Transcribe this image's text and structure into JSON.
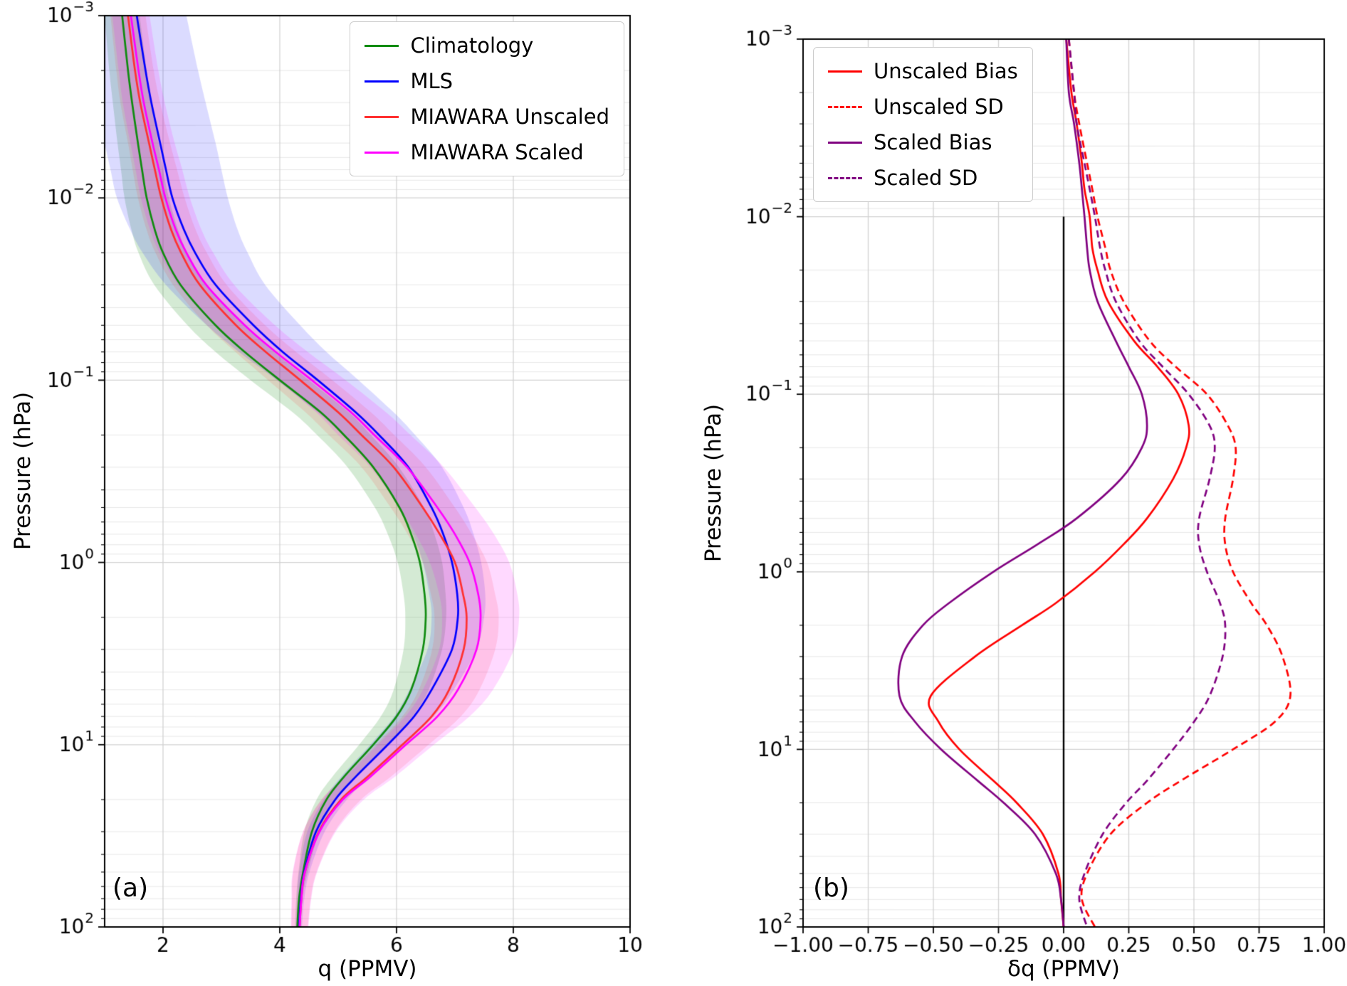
{
  "figure": {
    "background": "#ffffff",
    "panel_a_label": "(a)",
    "panel_b_label": "(b)"
  },
  "chart_data": [
    {
      "type": "line",
      "panel": "a",
      "title": "",
      "xlabel": "q (PPMV)",
      "ylabel": "Pressure (hPa)",
      "xlim": [
        1,
        10
      ],
      "x_ticks": [
        2,
        4,
        6,
        8,
        10
      ],
      "x_tick_labels": [
        "2",
        "4",
        "6",
        "8",
        "10"
      ],
      "yscale": "log",
      "y_inverted": true,
      "ylim": [
        0.001,
        100
      ],
      "y_tick_values": [
        0.001,
        0.01,
        0.1,
        1,
        10,
        100
      ],
      "y_tick_exponents": [
        "−3",
        "−2",
        "−1",
        "0",
        "1",
        "2"
      ],
      "grid": true,
      "legend_position": "top-right",
      "pressure_hPa": [
        0.001,
        0.002,
        0.003,
        0.005,
        0.007,
        0.01,
        0.015,
        0.02,
        0.03,
        0.05,
        0.07,
        0.1,
        0.15,
        0.2,
        0.3,
        0.5,
        0.7,
        1,
        1.5,
        2,
        3,
        5,
        7,
        10,
        15,
        20,
        30,
        50,
        70,
        100
      ],
      "series": [
        {
          "name": "Climatology",
          "color": "#0f8b0f",
          "dash": false,
          "band_alpha": 0.18,
          "values": [
            1.3,
            1.4,
            1.47,
            1.57,
            1.64,
            1.72,
            1.86,
            2.0,
            2.3,
            2.9,
            3.4,
            4.0,
            4.7,
            5.1,
            5.6,
            6.05,
            6.25,
            6.4,
            6.48,
            6.5,
            6.45,
            6.25,
            6.0,
            5.6,
            5.1,
            4.8,
            4.55,
            4.4,
            4.33,
            4.3
          ],
          "band_halfwidth": [
            0.3,
            0.32,
            0.33,
            0.35,
            0.36,
            0.38,
            0.4,
            0.42,
            0.45,
            0.48,
            0.5,
            0.5,
            0.48,
            0.46,
            0.44,
            0.42,
            0.4,
            0.38,
            0.36,
            0.35,
            0.33,
            0.3,
            0.27,
            0.24,
            0.2,
            0.17,
            0.13,
            0.08,
            0.05,
            0.04
          ]
        },
        {
          "name": "MLS",
          "color": "#0000ff",
          "dash": false,
          "band_alpha": 0.14,
          "values": [
            1.55,
            1.7,
            1.8,
            1.95,
            2.05,
            2.16,
            2.36,
            2.55,
            2.9,
            3.55,
            4.05,
            4.65,
            5.3,
            5.7,
            6.2,
            6.6,
            6.8,
            6.95,
            7.04,
            7.05,
            6.95,
            6.6,
            6.3,
            5.85,
            5.3,
            4.95,
            4.62,
            4.42,
            4.36,
            4.33
          ],
          "band_halfwidth": [
            0.85,
            0.9,
            0.93,
            0.95,
            0.95,
            0.95,
            0.92,
            0.9,
            0.85,
            0.8,
            0.75,
            0.7,
            0.65,
            0.62,
            0.58,
            0.55,
            0.52,
            0.5,
            0.48,
            0.45,
            0.42,
            0.38,
            0.34,
            0.3,
            0.25,
            0.2,
            0.15,
            0.09,
            0.06,
            0.05
          ]
        },
        {
          "name": "MIAWARA Unscaled",
          "color": "#ff3030",
          "dash": false,
          "band_alpha": 0.13,
          "values": [
            1.4,
            1.52,
            1.61,
            1.76,
            1.86,
            1.97,
            2.14,
            2.31,
            2.63,
            3.25,
            3.76,
            4.35,
            5.0,
            5.4,
            5.95,
            6.45,
            6.74,
            7.0,
            7.14,
            7.2,
            7.15,
            6.9,
            6.6,
            6.1,
            5.5,
            5.05,
            4.67,
            4.43,
            4.37,
            4.34
          ],
          "band_halfwidth": [
            0.3,
            0.32,
            0.34,
            0.36,
            0.38,
            0.4,
            0.42,
            0.44,
            0.46,
            0.5,
            0.52,
            0.55,
            0.56,
            0.56,
            0.55,
            0.55,
            0.55,
            0.55,
            0.55,
            0.55,
            0.54,
            0.52,
            0.5,
            0.45,
            0.4,
            0.34,
            0.27,
            0.2,
            0.16,
            0.14
          ]
        },
        {
          "name": "MIAWARA Scaled",
          "color": "#ff00ff",
          "dash": false,
          "band_alpha": 0.15,
          "values": [
            1.45,
            1.58,
            1.67,
            1.82,
            1.93,
            2.04,
            2.22,
            2.4,
            2.74,
            3.4,
            3.93,
            4.55,
            5.22,
            5.62,
            6.18,
            6.7,
            7.0,
            7.25,
            7.4,
            7.44,
            7.37,
            7.05,
            6.7,
            6.16,
            5.55,
            5.08,
            4.68,
            4.43,
            4.37,
            4.34
          ],
          "band_halfwidth": [
            0.32,
            0.34,
            0.36,
            0.38,
            0.4,
            0.42,
            0.44,
            0.46,
            0.48,
            0.52,
            0.55,
            0.58,
            0.6,
            0.62,
            0.63,
            0.65,
            0.67,
            0.68,
            0.67,
            0.66,
            0.64,
            0.6,
            0.55,
            0.48,
            0.42,
            0.36,
            0.28,
            0.21,
            0.17,
            0.15
          ]
        }
      ]
    },
    {
      "type": "line",
      "panel": "b",
      "title": "",
      "xlabel": "δq (PPMV)",
      "ylabel": "Pressure (hPa)",
      "xlim": [
        -1,
        1
      ],
      "x_ticks": [
        -1,
        -0.75,
        -0.5,
        -0.25,
        0,
        0.25,
        0.5,
        0.75,
        1
      ],
      "x_tick_labels": [
        "−1.00",
        "−0.75",
        "−0.50",
        "−0.25",
        "0.00",
        "0.25",
        "0.50",
        "0.75",
        "1.00"
      ],
      "yscale": "log",
      "y_inverted": true,
      "ylim": [
        0.001,
        100
      ],
      "y_tick_values": [
        0.001,
        0.01,
        0.1,
        1,
        10,
        100
      ],
      "y_tick_exponents": [
        "−3",
        "−2",
        "−1",
        "0",
        "1",
        "2"
      ],
      "grid": true,
      "legend_position": "top-left",
      "zero_line": {
        "x": 0,
        "color": "#000000",
        "from_pressure": 0.01,
        "to_pressure": 100
      },
      "pressure_hPa": [
        0.001,
        0.002,
        0.003,
        0.005,
        0.007,
        0.01,
        0.015,
        0.02,
        0.03,
        0.05,
        0.07,
        0.1,
        0.15,
        0.2,
        0.3,
        0.5,
        0.7,
        1,
        1.5,
        2,
        3,
        5,
        7,
        10,
        15,
        20,
        30,
        50,
        70,
        100
      ],
      "series": [
        {
          "name": "Unscaled Bias",
          "color": "#ff0000",
          "dash": false,
          "values": [
            0.01,
            0.03,
            0.05,
            0.07,
            0.08,
            0.1,
            0.11,
            0.13,
            0.17,
            0.27,
            0.36,
            0.44,
            0.48,
            0.47,
            0.42,
            0.32,
            0.23,
            0.12,
            -0.03,
            -0.16,
            -0.34,
            -0.51,
            -0.48,
            -0.4,
            -0.27,
            -0.18,
            -0.08,
            -0.02,
            -0.01,
            0.0
          ]
        },
        {
          "name": "Unscaled SD",
          "color": "#ff0000",
          "dash": true,
          "values": [
            0.02,
            0.04,
            0.06,
            0.09,
            0.11,
            0.13,
            0.16,
            0.18,
            0.23,
            0.33,
            0.43,
            0.55,
            0.63,
            0.66,
            0.65,
            0.62,
            0.62,
            0.65,
            0.72,
            0.78,
            0.84,
            0.87,
            0.81,
            0.65,
            0.45,
            0.32,
            0.18,
            0.09,
            0.07,
            0.12
          ]
        },
        {
          "name": "Scaled Bias",
          "color": "#800080",
          "dash": false,
          "values": [
            0.01,
            0.02,
            0.04,
            0.06,
            0.07,
            0.08,
            0.09,
            0.1,
            0.13,
            0.2,
            0.25,
            0.3,
            0.32,
            0.3,
            0.22,
            0.05,
            -0.1,
            -0.27,
            -0.44,
            -0.54,
            -0.62,
            -0.63,
            -0.57,
            -0.47,
            -0.33,
            -0.23,
            -0.11,
            -0.03,
            -0.01,
            0.0
          ]
        },
        {
          "name": "Scaled SD",
          "color": "#800080",
          "dash": true,
          "values": [
            0.02,
            0.04,
            0.05,
            0.08,
            0.1,
            0.12,
            0.14,
            0.16,
            0.2,
            0.29,
            0.38,
            0.48,
            0.56,
            0.58,
            0.56,
            0.52,
            0.52,
            0.55,
            0.6,
            0.62,
            0.61,
            0.56,
            0.5,
            0.42,
            0.32,
            0.24,
            0.15,
            0.08,
            0.06,
            0.09
          ]
        }
      ]
    }
  ]
}
